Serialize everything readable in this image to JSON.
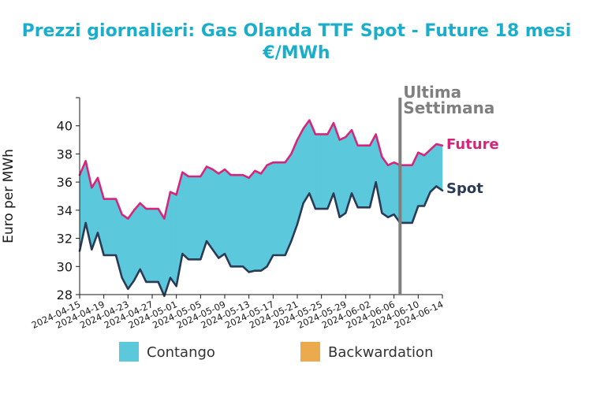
{
  "title_line1": "Prezzi giornalieri: Gas Olanda TTF Spot - Future 18 mesi",
  "title_line2": "€/MWh",
  "chart_data": {
    "type": "area",
    "ylabel": "Euro per MWh",
    "xlabel": "",
    "ylim": [
      28,
      42
    ],
    "yticks": [
      28,
      30,
      32,
      34,
      36,
      38,
      40
    ],
    "x_tick_labels": [
      "2024-04-15",
      "2024-04-19",
      "2024-04-23",
      "2024-04-27",
      "2024-05-01",
      "2024-05-05",
      "2024-05-09",
      "2024-05-13",
      "2024-05-17",
      "2024-05-21",
      "2024-05-25",
      "2024-05-29",
      "2024-06-02",
      "2024-06-06",
      "2024-06-10",
      "2024-06-14"
    ],
    "x": [
      "2024-04-15",
      "2024-04-16",
      "2024-04-17",
      "2024-04-18",
      "2024-04-19",
      "2024-04-20",
      "2024-04-21",
      "2024-04-22",
      "2024-04-23",
      "2024-04-24",
      "2024-04-25",
      "2024-04-26",
      "2024-04-27",
      "2024-04-28",
      "2024-04-29",
      "2024-04-30",
      "2024-05-01",
      "2024-05-02",
      "2024-05-03",
      "2024-05-04",
      "2024-05-05",
      "2024-05-06",
      "2024-05-07",
      "2024-05-08",
      "2024-05-09",
      "2024-05-10",
      "2024-05-11",
      "2024-05-12",
      "2024-05-13",
      "2024-05-14",
      "2024-05-15",
      "2024-05-16",
      "2024-05-17",
      "2024-05-18",
      "2024-05-19",
      "2024-05-20",
      "2024-05-21",
      "2024-05-22",
      "2024-05-23",
      "2024-05-24",
      "2024-05-25",
      "2024-05-26",
      "2024-05-27",
      "2024-05-28",
      "2024-05-29",
      "2024-05-30",
      "2024-05-31",
      "2024-06-01",
      "2024-06-02",
      "2024-06-03",
      "2024-06-04",
      "2024-06-05",
      "2024-06-06",
      "2024-06-07",
      "2024-06-08",
      "2024-06-09",
      "2024-06-10",
      "2024-06-11",
      "2024-06-12",
      "2024-06-13",
      "2024-06-14"
    ],
    "series": [
      {
        "name": "Future",
        "color": "#d6267a",
        "values": [
          36.5,
          37.5,
          35.6,
          36.3,
          34.8,
          34.8,
          34.8,
          33.7,
          33.4,
          34.0,
          34.5,
          34.1,
          34.1,
          34.1,
          33.4,
          35.3,
          35.1,
          36.7,
          36.4,
          36.4,
          36.4,
          37.1,
          36.9,
          36.6,
          36.9,
          36.5,
          36.5,
          36.5,
          36.3,
          36.8,
          36.6,
          37.2,
          37.4,
          37.4,
          37.4,
          38.0,
          39.0,
          39.8,
          40.4,
          39.4,
          39.4,
          39.4,
          40.2,
          39.0,
          39.2,
          39.7,
          38.6,
          38.6,
          38.6,
          39.4,
          37.8,
          37.2,
          37.4,
          37.2,
          37.2,
          37.2,
          38.1,
          37.9,
          38.3,
          38.7,
          38.6
        ]
      },
      {
        "name": "Spot",
        "color": "#2b3a55",
        "values": [
          31.1,
          33.1,
          31.2,
          32.4,
          30.8,
          30.8,
          30.8,
          29.2,
          28.4,
          29.0,
          29.8,
          28.9,
          28.9,
          28.9,
          27.9,
          29.2,
          28.6,
          30.9,
          30.5,
          30.5,
          30.5,
          31.8,
          31.2,
          30.6,
          30.9,
          30.0,
          30.0,
          30.0,
          29.6,
          29.7,
          29.7,
          30.0,
          30.8,
          30.8,
          30.8,
          31.8,
          33.0,
          34.5,
          35.2,
          34.1,
          34.1,
          34.1,
          35.2,
          33.5,
          33.8,
          35.2,
          34.2,
          34.2,
          34.2,
          36.0,
          33.8,
          33.5,
          33.7,
          33.1,
          33.1,
          33.1,
          34.3,
          34.3,
          35.3,
          35.7,
          35.4
        ]
      }
    ],
    "fill_colors": {
      "contango": "#5bc8dc",
      "backwardation": "#ebaa4b"
    },
    "legend": [
      {
        "label": "Contango",
        "color": "#5bc8dc"
      },
      {
        "label": "Backwardation",
        "color": "#ebaa4b"
      }
    ],
    "legend_position": "bottom",
    "marker": {
      "x": "2024-06-07",
      "label_line1": "Ultima",
      "label_line2": "Settimana",
      "color": "#7f7f7f"
    },
    "series_label_future": "Future",
    "series_label_spot": "Spot",
    "grid": false
  }
}
